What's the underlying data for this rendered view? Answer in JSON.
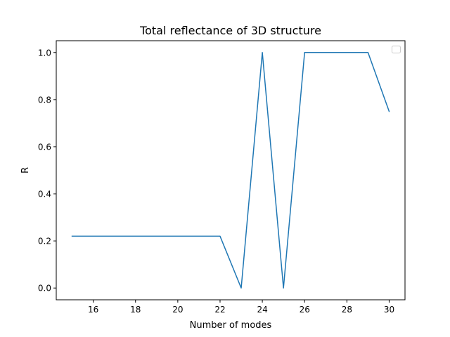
{
  "chart_data": {
    "type": "line",
    "title": "Total reflectance of 3D structure",
    "xlabel": "Number of modes",
    "ylabel": "R",
    "xlim": [
      14.25,
      30.75
    ],
    "ylim": [
      -0.05,
      1.05
    ],
    "xticks": [
      16,
      18,
      20,
      22,
      24,
      26,
      28,
      30
    ],
    "yticks": [
      0.0,
      0.2,
      0.4,
      0.6,
      0.8,
      1.0
    ],
    "xtick_labels": [
      "16",
      "18",
      "20",
      "22",
      "24",
      "26",
      "28",
      "30"
    ],
    "ytick_labels": [
      "0.0",
      "0.2",
      "0.4",
      "0.6",
      "0.8",
      "1.0"
    ],
    "grid": false,
    "legend": {
      "location": "upper right",
      "entries": []
    },
    "series": [
      {
        "color": "#1f77b4",
        "x": [
          15,
          16,
          17,
          18,
          19,
          20,
          21,
          22,
          23,
          24,
          25,
          26,
          27,
          28,
          29,
          30
        ],
        "y": [
          0.22,
          0.22,
          0.22,
          0.22,
          0.22,
          0.22,
          0.22,
          0.22,
          0.0,
          1.0,
          0.0,
          1.0,
          1.0,
          1.0,
          1.0,
          0.75
        ]
      }
    ]
  }
}
